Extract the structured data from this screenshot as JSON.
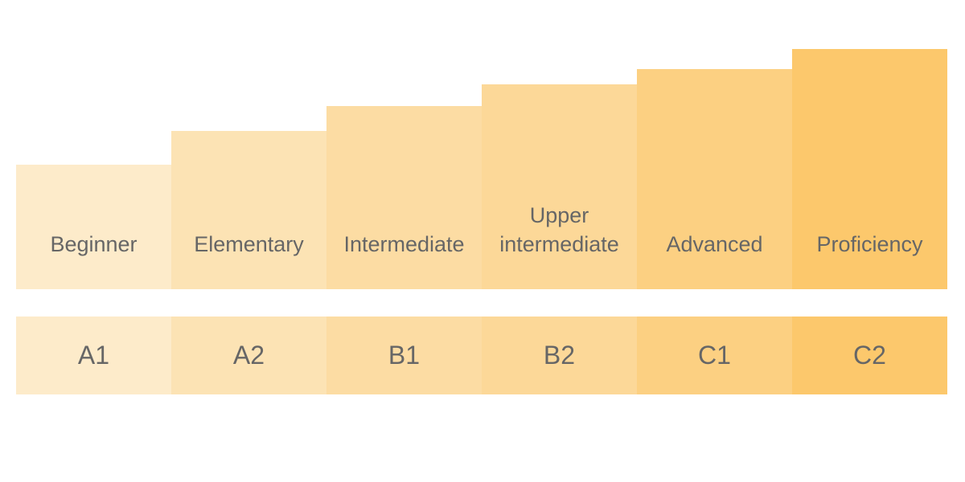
{
  "levels": [
    {
      "label": "Beginner",
      "code": "A1"
    },
    {
      "label": "Elementary",
      "code": "A2"
    },
    {
      "label": "Intermediate",
      "code": "B1"
    },
    {
      "label": "Upper intermediate",
      "code": "B2"
    },
    {
      "label": "Advanced",
      "code": "C1"
    },
    {
      "label": "Proficiency",
      "code": "C2"
    }
  ]
}
